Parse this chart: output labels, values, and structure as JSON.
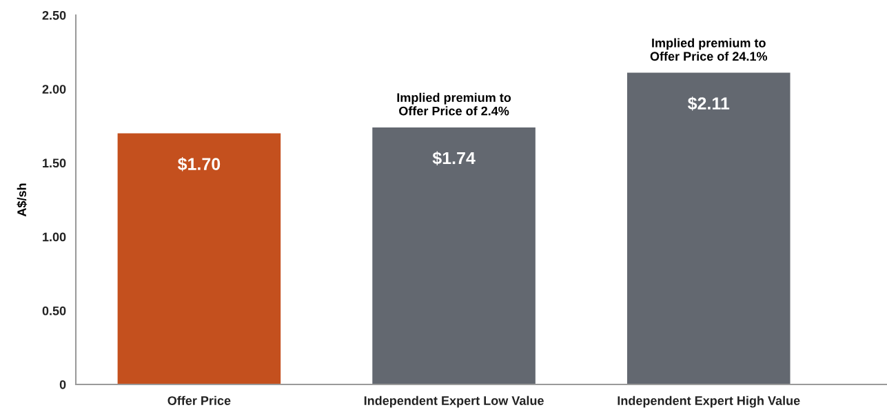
{
  "chart_data": {
    "type": "bar",
    "ylabel": "A$/sh",
    "categories": [
      "Offer Price",
      "Independent Expert Low Value",
      "Independent Expert High Value"
    ],
    "values": [
      1.7,
      1.74,
      2.11
    ],
    "colors": [
      "#c4501e",
      "#636870",
      "#636870"
    ],
    "value_labels": [
      "$1.70",
      "$1.74",
      "$2.11"
    ],
    "ylim": [
      0,
      2.5
    ],
    "yticks": [
      0,
      {
        "value": 0.5,
        "label": "0.50"
      },
      {
        "value": 1.0,
        "label": "1.00"
      },
      {
        "value": 1.5,
        "label": "1.50"
      },
      {
        "value": 2.0,
        "label": "2.00"
      },
      {
        "value": 2.5,
        "label": "2.50"
      }
    ],
    "grid": false,
    "legend": false,
    "annotations": [
      {
        "text": "Implied premium to\nOffer Price of 2.4%",
        "x": "Independent Expert Low Value",
        "y": 1.74
      },
      {
        "text": "Implied premium to\nOffer Price of 24.1%",
        "x": "Independent Expert High Value",
        "y": 2.11
      }
    ]
  }
}
